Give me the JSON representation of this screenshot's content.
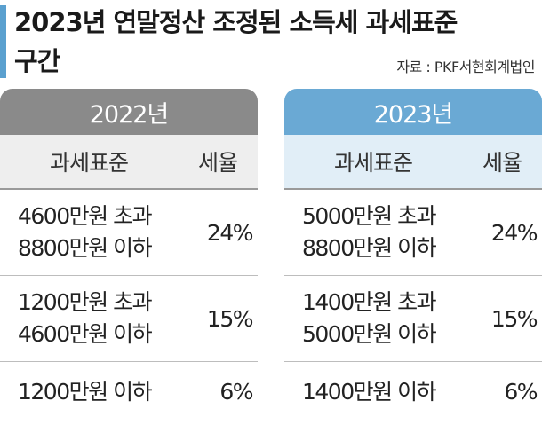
{
  "title": {
    "line1": "2023년 연말정산 조정된 소득세 과세표준",
    "line2": "구간"
  },
  "source": "자료 : PKF서현회계법인",
  "columns": {
    "base": "과세표준",
    "rate": "세율"
  },
  "tables": [
    {
      "year": "2022년",
      "rows": [
        {
          "line1": "4600만원 초과",
          "line2": "8800만원 이하",
          "rate": "24%"
        },
        {
          "line1": "1200만원 초과",
          "line2": "4600만원 이하",
          "rate": "15%"
        },
        {
          "line1": "1200만원 이하",
          "line2": "",
          "rate": "6%"
        }
      ]
    },
    {
      "year": "2023년",
      "rows": [
        {
          "line1": "5000만원 초과",
          "line2": "8800만원 이하",
          "rate": "24%"
        },
        {
          "line1": "1400만원 초과",
          "line2": "5000만원 이하",
          "rate": "15%"
        },
        {
          "line1": "1400만원 이하",
          "line2": "",
          "rate": "6%"
        }
      ]
    }
  ],
  "colors": {
    "accent": "#5aa0cf",
    "year2022": "#8a8a8a",
    "year2023": "#6aa9d4"
  }
}
